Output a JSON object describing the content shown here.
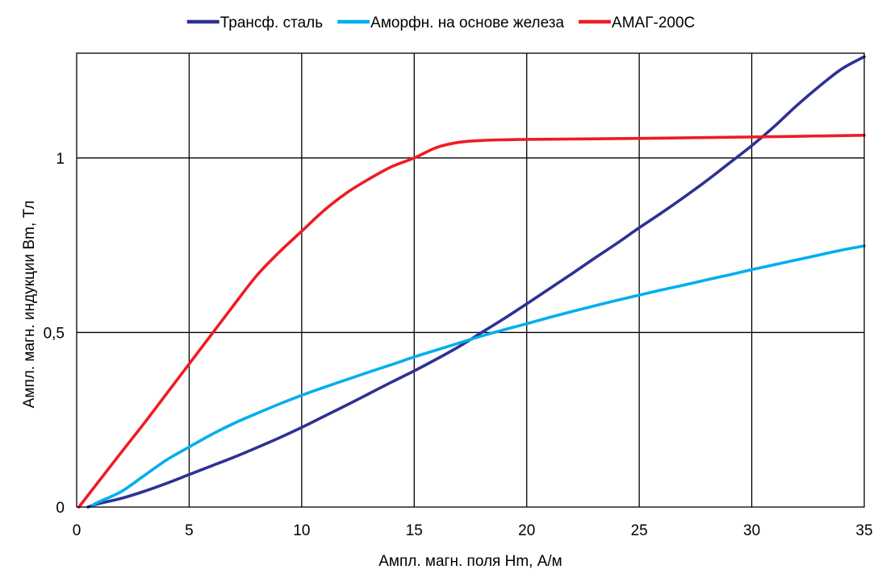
{
  "chart_data": {
    "type": "line",
    "title": "",
    "xlabel": "Ампл. магн. поля Hm, А/м",
    "ylabel": "Ампл. магн. индукции Bm, Тл",
    "xlim": [
      0,
      35
    ],
    "ylim": [
      0,
      1.3
    ],
    "grid": true,
    "legend_position": "top",
    "x_ticks": [
      {
        "value": 0,
        "label": "0"
      },
      {
        "value": 5,
        "label": "5"
      },
      {
        "value": 10,
        "label": "10"
      },
      {
        "value": 15,
        "label": "15"
      },
      {
        "value": 20,
        "label": "20"
      },
      {
        "value": 25,
        "label": "25"
      },
      {
        "value": 30,
        "label": "30"
      },
      {
        "value": 35,
        "label": "35"
      }
    ],
    "y_ticks": [
      {
        "value": 0,
        "label": "0"
      },
      {
        "value": 0.5,
        "label": "0,5"
      },
      {
        "value": 1,
        "label": "1"
      }
    ],
    "series": [
      {
        "name": "Трансф. сталь",
        "color": "#2e3192",
        "points": [
          [
            0.5,
            0
          ],
          [
            1,
            0.01
          ],
          [
            2,
            0.025
          ],
          [
            3,
            0.045
          ],
          [
            4,
            0.068
          ],
          [
            5,
            0.093
          ],
          [
            6,
            0.118
          ],
          [
            7,
            0.143
          ],
          [
            8,
            0.17
          ],
          [
            9,
            0.198
          ],
          [
            10,
            0.228
          ],
          [
            11,
            0.26
          ],
          [
            12,
            0.292
          ],
          [
            13,
            0.325
          ],
          [
            14,
            0.358
          ],
          [
            15,
            0.39
          ],
          [
            16,
            0.424
          ],
          [
            17,
            0.46
          ],
          [
            18,
            0.5
          ],
          [
            19,
            0.54
          ],
          [
            20,
            0.582
          ],
          [
            21,
            0.625
          ],
          [
            22,
            0.668
          ],
          [
            23,
            0.712
          ],
          [
            24,
            0.755
          ],
          [
            25,
            0.8
          ],
          [
            26,
            0.843
          ],
          [
            27,
            0.888
          ],
          [
            28,
            0.935
          ],
          [
            29,
            0.985
          ],
          [
            30,
            1.035
          ],
          [
            31,
            1.09
          ],
          [
            32,
            1.15
          ],
          [
            33,
            1.205
          ],
          [
            34,
            1.255
          ],
          [
            35,
            1.29
          ]
        ]
      },
      {
        "name": "Аморфн. на основе железа",
        "color": "#00aeef",
        "points": [
          [
            0.7,
            0.005
          ],
          [
            1,
            0.015
          ],
          [
            2,
            0.045
          ],
          [
            3,
            0.09
          ],
          [
            4,
            0.135
          ],
          [
            5,
            0.172
          ],
          [
            6,
            0.208
          ],
          [
            7,
            0.24
          ],
          [
            8,
            0.268
          ],
          [
            9,
            0.295
          ],
          [
            10,
            0.32
          ],
          [
            11,
            0.343
          ],
          [
            12,
            0.365
          ],
          [
            13,
            0.387
          ],
          [
            14,
            0.408
          ],
          [
            15,
            0.43
          ],
          [
            16,
            0.45
          ],
          [
            17,
            0.47
          ],
          [
            18,
            0.49
          ],
          [
            19,
            0.508
          ],
          [
            20,
            0.525
          ],
          [
            21,
            0.543
          ],
          [
            22,
            0.56
          ],
          [
            23,
            0.576
          ],
          [
            24,
            0.592
          ],
          [
            25,
            0.607
          ],
          [
            26,
            0.622
          ],
          [
            27,
            0.636
          ],
          [
            28,
            0.651
          ],
          [
            29,
            0.665
          ],
          [
            30,
            0.68
          ],
          [
            31,
            0.694
          ],
          [
            32,
            0.708
          ],
          [
            33,
            0.722
          ],
          [
            34,
            0.736
          ],
          [
            35,
            0.748
          ]
        ]
      },
      {
        "name": "АМАГ-200С",
        "color": "#ed1c24",
        "points": [
          [
            0.1,
            0
          ],
          [
            1,
            0.075
          ],
          [
            2,
            0.158
          ],
          [
            3,
            0.24
          ],
          [
            4,
            0.325
          ],
          [
            5,
            0.41
          ],
          [
            6,
            0.495
          ],
          [
            7,
            0.58
          ],
          [
            8,
            0.663
          ],
          [
            9,
            0.73
          ],
          [
            10,
            0.79
          ],
          [
            11,
            0.85
          ],
          [
            12,
            0.9
          ],
          [
            13,
            0.94
          ],
          [
            14,
            0.975
          ],
          [
            15,
            1.0
          ],
          [
            16,
            1.03
          ],
          [
            17,
            1.045
          ],
          [
            18,
            1.05
          ],
          [
            19,
            1.052
          ],
          [
            20,
            1.053
          ],
          [
            25,
            1.056
          ],
          [
            30,
            1.06
          ],
          [
            35,
            1.065
          ]
        ]
      }
    ]
  }
}
